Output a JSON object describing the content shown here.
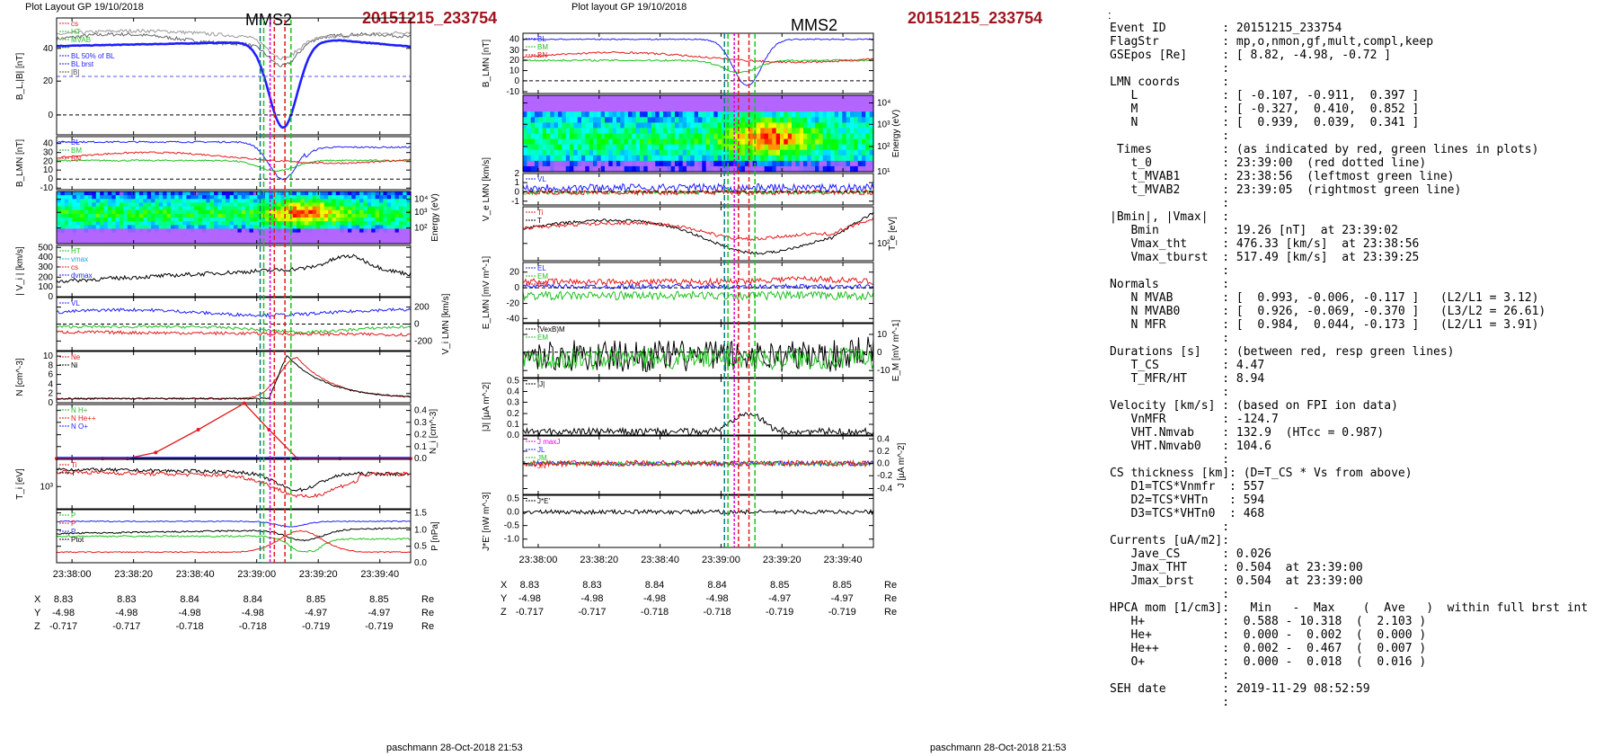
{
  "header": {
    "left_caption": "Plot Layout GP 19/10/2018",
    "mid_caption": "Plot layout GP 19/10/2018",
    "spacecraft": "MMS2",
    "event": "20151215_233754",
    "footer": "paschmann 28-Oct-2018 21:53"
  },
  "time_ticks": [
    "23:38:00",
    "23:38:20",
    "23:38:40",
    "23:39:00",
    "23:39:20",
    "23:39:40"
  ],
  "pos_rows": [
    {
      "label": "X",
      "vals": [
        "8.83",
        "8.83",
        "8.84",
        "8.84",
        "8.85",
        "8.85"
      ],
      "unit": "Re"
    },
    {
      "label": "Y",
      "vals": [
        "-4.98",
        "-4.98",
        "-4.98",
        "-4.98",
        "-4.97",
        "-4.97"
      ],
      "unit": "Re"
    },
    {
      "label": "Z",
      "vals": [
        "-0.717",
        "-0.717",
        "-0.718",
        "-0.718",
        "-0.719",
        "-0.719"
      ],
      "unit": "Re"
    }
  ],
  "colors": {
    "red": "#e41a1c",
    "green": "#1fc21f",
    "blue": "#1f1fff",
    "black": "#000000",
    "magenta": "#e000e0",
    "teal": "#0a7c7c",
    "cyan": "#17a7e8"
  },
  "chart_data": [
    {
      "type": "line",
      "panel": "left-1",
      "ylabel": "B_L,|B| [nT]",
      "yticks": [
        "0",
        "20",
        "40"
      ],
      "ylim": [
        -12,
        58
      ],
      "legend": [
        "cs",
        "HT",
        "MVAB",
        "",
        "BL 50% of BL",
        "BL brst",
        "|B|"
      ]
    },
    {
      "type": "line",
      "panel": "left-2",
      "ylabel": "B_LMN [nT]",
      "yticks": [
        "-10",
        "0",
        "10",
        "20",
        "30",
        "40"
      ],
      "ylim": [
        -12,
        48
      ],
      "legend": [
        "BL",
        "BM",
        "BN"
      ]
    },
    {
      "type": "heatmap",
      "panel": "left-3",
      "ylabel": "Energy (eV)",
      "yticks": [
        "10^2",
        "10^3",
        "10^4"
      ]
    },
    {
      "type": "line",
      "panel": "left-4",
      "ylabel": "| V_i | [km/s]",
      "yticks": [
        "0",
        "100",
        "200",
        "300",
        "400",
        "500"
      ],
      "ylim": [
        0,
        520
      ],
      "legend": [
        "HT",
        "vmax",
        "cs",
        "dvmax"
      ]
    },
    {
      "type": "line",
      "panel": "left-5",
      "ylabel": "V_i LMN [km/s]",
      "yticks": [
        "-200",
        "0",
        "200"
      ],
      "ylim": [
        -320,
        320
      ],
      "legend": [
        "VL"
      ]
    },
    {
      "type": "line",
      "panel": "left-6",
      "ylabel": "N [cm^-3]",
      "yticks": [
        "0",
        "2",
        "4",
        "6",
        "8",
        "10"
      ],
      "ylim": [
        0,
        11
      ],
      "legend": [
        "Ne",
        "Ni"
      ]
    },
    {
      "type": "line",
      "panel": "left-7",
      "ylabel": "N_i [cm^-3]",
      "yticks": [
        "0.0",
        "0.1",
        "0.2",
        "0.3",
        "0.4"
      ],
      "ylim": [
        0,
        0.45
      ],
      "legend": [
        "N H+",
        "N He++",
        "N O+"
      ],
      "x": [
        0,
        13,
        20,
        28,
        40,
        53,
        60,
        68,
        80,
        100
      ],
      "values": [
        0,
        0,
        0,
        0.05,
        0.24,
        0.46,
        0.24,
        0,
        0,
        0
      ]
    },
    {
      "type": "line",
      "panel": "left-8",
      "ylabel": "T_i [eV]",
      "yticks": [
        "10^3"
      ],
      "legend": [
        "Ti",
        "T"
      ]
    },
    {
      "type": "line",
      "panel": "left-9",
      "ylabel": "P [nPa]",
      "yticks": [
        "0.0",
        "0.5",
        "1.0",
        "1.5"
      ],
      "ylim": [
        0,
        1.6
      ],
      "legend": [
        "P",
        "P",
        "P",
        "Ptot"
      ]
    },
    {
      "type": "line",
      "panel": "mid-1",
      "ylabel": "B_LMN [nT]",
      "yticks": [
        "-10",
        "0",
        "10",
        "20",
        "30",
        "40"
      ],
      "ylim": [
        -12,
        46
      ],
      "legend": [
        "BL",
        "BM",
        "BN"
      ]
    },
    {
      "type": "heatmap",
      "panel": "mid-2",
      "ylabel": "Energy (eV)",
      "yticks": [
        "10^1",
        "10^2",
        "10^3",
        "10^4"
      ]
    },
    {
      "type": "line",
      "panel": "mid-3",
      "ylabel": "V_e LMN [km/s]",
      "yticks": [
        "-1",
        "0",
        "1",
        "2"
      ],
      "ylim": [
        -1.4,
        2.1
      ],
      "legend": [
        "VL"
      ]
    },
    {
      "type": "line",
      "panel": "mid-4",
      "ylabel": "T_e [eV]",
      "yticks": [
        "10^2"
      ],
      "legend": [
        "Ti",
        "T"
      ]
    },
    {
      "type": "line",
      "panel": "mid-5",
      "ylabel": "E_LMN [mV m^-1]",
      "yticks": [
        "-40",
        "-20",
        "0",
        "20"
      ],
      "ylim": [
        -45,
        32
      ],
      "legend": [
        "EL",
        "EM",
        "EN"
      ]
    },
    {
      "type": "line",
      "panel": "mid-6",
      "ylabel": "E_M [mV m^-1]",
      "yticks": [
        "-10",
        "0",
        "10"
      ],
      "ylim": [
        -14,
        16
      ],
      "legend": [
        "(VexB)M",
        "EM"
      ]
    },
    {
      "type": "line",
      "panel": "mid-7",
      "ylabel": "|J| [µA m^-2]",
      "yticks": [
        "0.0",
        "0.1",
        "0.2",
        "0.3",
        "0.4",
        "0.5"
      ],
      "ylim": [
        0,
        0.52
      ],
      "legend": [
        "|J|"
      ]
    },
    {
      "type": "line",
      "panel": "mid-8",
      "ylabel": "J [µA m^-2]",
      "yticks": [
        "-0.4",
        "-0.2",
        "0.0",
        "0.2",
        "0.4"
      ],
      "ylim": [
        -0.5,
        0.45
      ],
      "legend": [
        "J maxJ",
        "JL",
        "JM",
        "JN"
      ]
    },
    {
      "type": "line",
      "panel": "mid-9",
      "ylabel": "J*E' [nW m^-3]",
      "yticks": [
        "-1.0",
        "-0.5",
        "0.0",
        "0.5"
      ],
      "ylim": [
        -1.3,
        0.6
      ],
      "legend": [
        "J*E'"
      ]
    }
  ],
  "info_lines": [
    "Event ID        : 20151215_233754",
    "FlagStr         : mp,o,nmon,gf,mult,compl,keep",
    "GSEpos [Re]     : [ 8.82, -4.98, -0.72 ]",
    "                :",
    "LMN coords      :",
    "   L            : [ -0.107, -0.911,  0.397 ]",
    "   M            : [ -0.327,  0.410,  0.852 ]",
    "   N            : [  0.939,  0.039,  0.341 ]",
    "                :",
    " Times          : (as indicated by red, green lines in plots)",
    "   t_0          : 23:39:00  (red dotted line)",
    "   t_MVAB1      : 23:38:56  (leftmost green line)",
    "   t_MVAB2      : 23:39:05  (rightmost green line)",
    "                :",
    "|Bmin|, |Vmax|  :",
    "   Bmin         : 19.26 [nT]  at 23:39:02",
    "   Vmax_tht     : 476.33 [km/s]  at 23:38:56",
    "   Vmax_tburst  : 517.49 [km/s]  at 23:39:25",
    "                :",
    "Normals         :",
    "   N MVAB       : [  0.993, -0.006, -0.117 ]   (L2/L1 = 3.12)",
    "   N MVAB0      : [  0.926, -0.069, -0.370 ]   (L3/L2 = 26.61)",
    "   N MFR        : [  0.984,  0.044, -0.173 ]   (L2/L1 = 3.91)",
    "                :",
    "Durations [s]   : (between red, resp green lines)",
    "   T_CS         : 4.47",
    "   T_MFR/HT     : 8.94",
    "                :",
    "Velocity [km/s] : (based on FPI ion data)",
    "   VnMFR        : -124.7",
    "   VHT.Nmvab    : 132.9  (HTcc = 0.987)",
    "   VHT.Nmvab0   : 104.6",
    "                :",
    "CS thickness [km]: (D=T_CS * Vs from above)",
    "   D1=TCS*Vnmfr  : 557",
    "   D2=TCS*VHTn   : 594",
    "   D3=TCS*VHTn0  : 468",
    "                :",
    "Currents [uA/m2]:",
    "   Jave_CS      : 0.026",
    "   Jmax_THT     : 0.504  at 23:39:00",
    "   Jmax_brst    : 0.504  at 23:39:00",
    "                :",
    "HPCA mom [1/cm3]:   Min   -  Max    (  Ave   )  within full brst int",
    "   H+           :  0.588 - 10.318  (  2.103 )",
    "   He+          :  0.000 -  0.002  (  0.000 )",
    "   He++         :  0.002 -  0.467  (  0.007 )",
    "   O+           :  0.000 -  0.018  (  0.016 )",
    "                :",
    "SEH date        : 2019-11-29 08:52:59",
    "                :"
  ]
}
